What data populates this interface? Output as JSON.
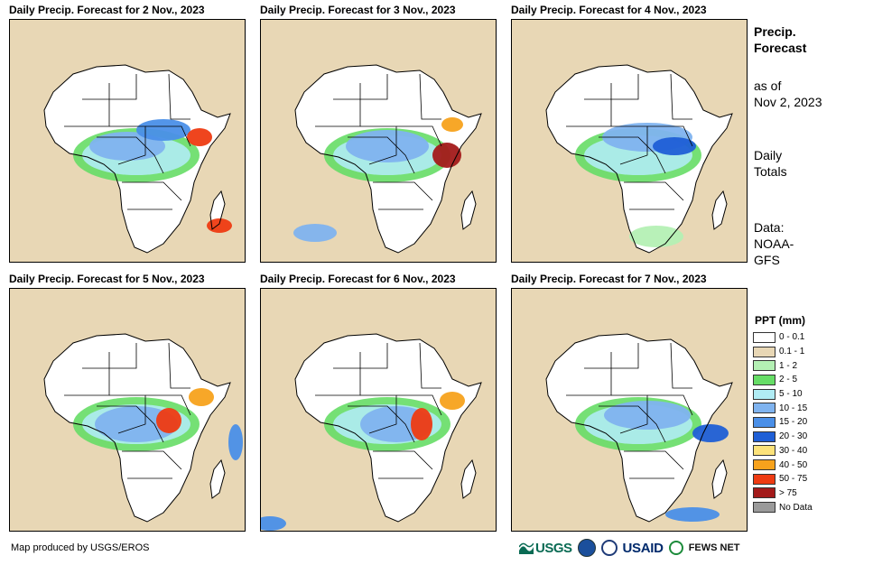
{
  "panels": [
    {
      "title": "Daily Precip. Forecast for 2 Nov., 2023",
      "date": "2 Nov., 2023",
      "region": "Africa"
    },
    {
      "title": "Daily Precip. Forecast for 3 Nov., 2023",
      "date": "3 Nov., 2023",
      "region": "Africa"
    },
    {
      "title": "Daily Precip. Forecast for 4 Nov., 2023",
      "date": "4 Nov., 2023",
      "region": "Africa"
    },
    {
      "title": "Daily Precip. Forecast for 5 Nov., 2023",
      "date": "5 Nov., 2023",
      "region": "Africa"
    },
    {
      "title": "Daily Precip. Forecast for 6 Nov., 2023",
      "date": "6 Nov., 2023",
      "region": "Africa"
    },
    {
      "title": "Daily Precip. Forecast for 7 Nov., 2023",
      "date": "7 Nov., 2023",
      "region": "Africa"
    }
  ],
  "sidebar": {
    "heading_line1": "Precip.",
    "heading_line2": "Forecast",
    "asof_line1": "as of",
    "asof_line2": "Nov 2, 2023",
    "totals_line1": "Daily",
    "totals_line2": "Totals",
    "data_line1": "Data:",
    "data_line2": "NOAA-",
    "data_line3": "GFS"
  },
  "legend": {
    "title": "PPT (mm)",
    "items": [
      {
        "label": "0 - 0.1",
        "color": "#ffffff"
      },
      {
        "label": "0.1 - 1",
        "color": "#e8d7b5"
      },
      {
        "label": "1 - 2",
        "color": "#b4f0b4"
      },
      {
        "label": "2 - 5",
        "color": "#66dd66"
      },
      {
        "label": "5 - 10",
        "color": "#b0ecf4"
      },
      {
        "label": "10 - 15",
        "color": "#7fb3ef"
      },
      {
        "label": "15 - 20",
        "color": "#4a8fe8"
      },
      {
        "label": "20 - 30",
        "color": "#1f5fd6"
      },
      {
        "label": "30 - 40",
        "color": "#fce27a"
      },
      {
        "label": "40 - 50",
        "color": "#f7a21c"
      },
      {
        "label": "50 - 75",
        "color": "#ee3b12"
      },
      {
        "label": "> 75",
        "color": "#a31a1a"
      },
      {
        "label": "No Data",
        "color": "#9a9a9a"
      }
    ]
  },
  "footer": {
    "credit": "Map produced by USGS/EROS",
    "logo_usgs": "USGS",
    "logo_usaid_a": "USAID",
    "logo_fews": "FEWS NET"
  }
}
